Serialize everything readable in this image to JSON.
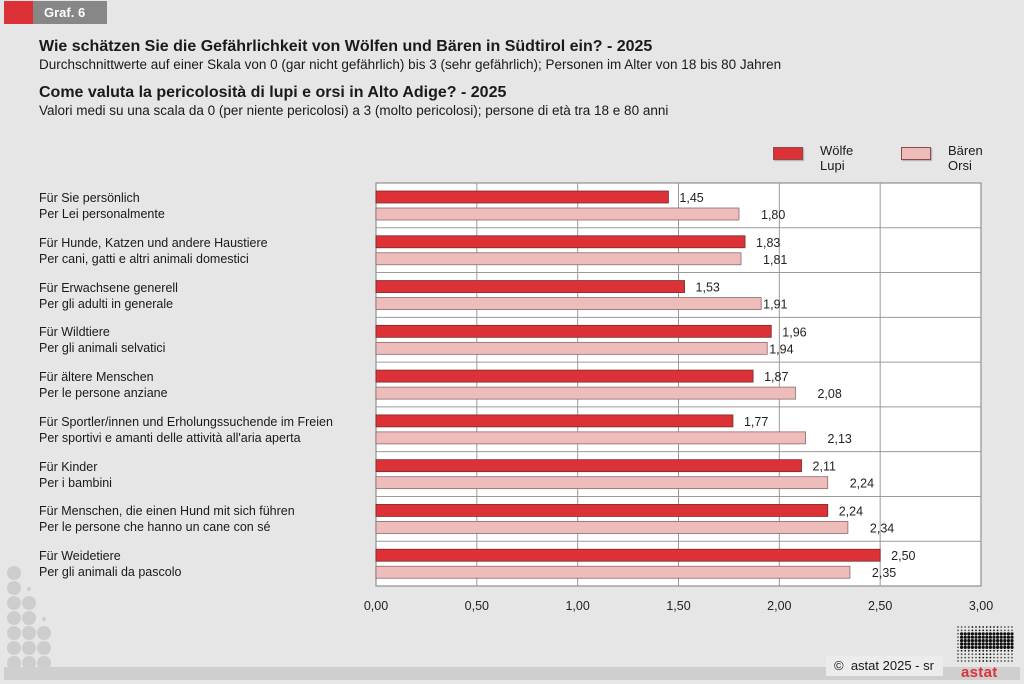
{
  "header": {
    "graf_label": "Graf. 6",
    "title_de": "Wie schätzen Sie die Gefährlichkeit von Wölfen und Bären in Südtirol ein? - 2025",
    "subtitle_de": "Durchschnittwerte auf einer Skala von 0 (gar nicht gefährlich) bis 3 (sehr gefährlich); Personen im Alter von 18 bis 80 Jahren",
    "title_it": "Come valuta la pericolosità di lupi e orsi in Alto Adige? - 2025",
    "subtitle_it": "Valori medi su una scala da 0 (per niente pericolosi) a 3 (molto pericolosi); persone di età tra 18 e 80 anni"
  },
  "colors": {
    "wolves": "#dc3237",
    "bears": "#efbcbc",
    "accent": "#dc3237"
  },
  "chart_data": {
    "type": "bar",
    "orientation": "horizontal",
    "title": "Wie schätzen Sie die Gefährlichkeit von Wölfen und Bären in Südtirol ein? - 2025",
    "categories": [
      {
        "de": "Für Sie persönlich",
        "it": "Per Lei personalmente"
      },
      {
        "de": "Für Hunde, Katzen und andere Haustiere",
        "it": "Per cani, gatti e altri animali domestici"
      },
      {
        "de": "Für Erwachsene generell",
        "it": "Per gli adulti in generale"
      },
      {
        "de": "Für Wildtiere",
        "it": "Per gli animali selvatici"
      },
      {
        "de": "Für ältere Menschen",
        "it": "Per le persone anziane"
      },
      {
        "de": "Für Sportler/innen und Erholungssuchende im Freien",
        "it": "Per sportivi e amanti delle attività all'aria aperta"
      },
      {
        "de": "Für Kinder",
        "it": "Per i bambini"
      },
      {
        "de": "Für Menschen, die einen Hund mit sich führen",
        "it": "Per le persone che hanno un cane con sé"
      },
      {
        "de": "Für Weidetiere",
        "it": "Per gli animali da pascolo"
      }
    ],
    "series": [
      {
        "name_de": "Wölfe",
        "name_it": "Lupi",
        "values": [
          1.45,
          1.83,
          1.53,
          1.96,
          1.87,
          1.77,
          2.11,
          2.24,
          2.5
        ]
      },
      {
        "name_de": "Bären",
        "name_it": "Orsi",
        "values": [
          1.8,
          1.81,
          1.91,
          1.94,
          2.08,
          2.13,
          2.24,
          2.34,
          2.35
        ]
      }
    ],
    "xlim": [
      0,
      3
    ],
    "xticks": [
      0,
      0.5,
      1,
      1.5,
      2,
      2.5,
      3
    ],
    "xtick_labels": [
      "0,00",
      "0,50",
      "1,00",
      "1,50",
      "2,00",
      "2,50",
      "3,00"
    ],
    "xlabel": "",
    "ylabel": "",
    "grid": true,
    "legend_position": "top-right",
    "decimal_separator": ","
  },
  "footer": {
    "copyright": "astat 2025 - sr",
    "copyright_symbol": "©",
    "logo_text": "astat"
  }
}
